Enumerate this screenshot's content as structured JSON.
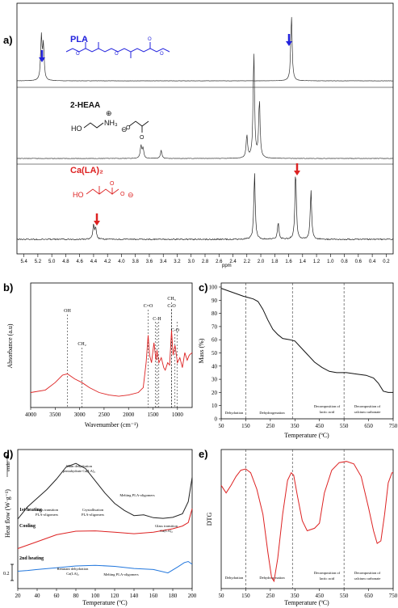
{
  "panels": {
    "a": "a)",
    "b": "b)",
    "c": "c)",
    "d": "d)",
    "e": "e)"
  },
  "nmr": {
    "xlabel": "ppm",
    "ticks": [
      5.4,
      5.2,
      5.0,
      4.8,
      4.6,
      4.4,
      4.2,
      4.0,
      3.8,
      3.6,
      3.4,
      3.2,
      3.0,
      2.8,
      2.6,
      2.4,
      2.2,
      2.0,
      1.8,
      1.6,
      1.4,
      1.2,
      1.0,
      0.8,
      0.6,
      0.4,
      0.2
    ],
    "tick_labels": [
      "5.4",
      "5.2",
      "5.0",
      "4.8",
      "4.6",
      "4.4",
      "4.2",
      "4.0",
      "3.8",
      "3.6",
      "3.4",
      "3.2",
      "3.0",
      "2.8",
      "2.6",
      "2.4",
      "2.2",
      "2.0",
      "1.8",
      "1.6",
      "1.4",
      "1.2",
      "1.0",
      "0.8",
      "0.6",
      "0.4",
      "0.2"
    ],
    "compounds": [
      {
        "name": "PLA",
        "color": "#2222dd"
      },
      {
        "name": "2-HEAA",
        "color": "#111111"
      },
      {
        "name": "Ca(LA)₂",
        "color": "#dd2222"
      }
    ],
    "struct_labels": {
      "ho1": "HO",
      "nh3": "NH₃",
      "ho2": "HO",
      "plus": "⊕",
      "minus": "⊖"
    }
  },
  "chart_data": [
    {
      "type": "line",
      "title": "",
      "xlabel": "ppm",
      "xlim": [
        5.5,
        0.1
      ],
      "series": [
        {
          "name": "PLA",
          "peaks": [
            {
              "x": 5.15,
              "height": 0.6
            },
            {
              "x": 1.56,
              "height": 0.9
            }
          ]
        },
        {
          "name": "2-HEAA",
          "peaks": [
            {
              "x": 3.72,
              "height": 0.12
            },
            {
              "x": 3.43,
              "height": 0.08
            },
            {
              "x": 2.2,
              "height": 0.22
            },
            {
              "x": 2.1,
              "height": 1.0
            },
            {
              "x": 2.02,
              "height": 0.55
            }
          ]
        },
        {
          "name": "Ca(LA)₂",
          "peaks": [
            {
              "x": 4.4,
              "height": 0.2
            },
            {
              "x": 2.09,
              "height": 0.95
            },
            {
              "x": 1.75,
              "height": 0.25
            },
            {
              "x": 1.5,
              "height": 1.0
            },
            {
              "x": 1.28,
              "height": 0.7
            }
          ]
        }
      ]
    },
    {
      "type": "line",
      "title": "",
      "xlabel": "Wavenumber (cm⁻¹)",
      "ylabel": "Absorbance (a.u)",
      "xlim": [
        4000,
        700
      ],
      "x_ticks": [
        4000,
        3500,
        3000,
        2500,
        2000,
        1500,
        1000
      ],
      "annotations": [
        {
          "label": "OH",
          "x": 3250
        },
        {
          "label": "CH₂",
          "x": 2950
        },
        {
          "label": "C=O",
          "x": 1600
        },
        {
          "label": "C-H",
          "x": 1420
        },
        {
          "label": "CH₃",
          "x": 1120
        },
        {
          "label": "C-O",
          "x": 1120
        },
        {
          "label": "C-O",
          "x": 1050
        }
      ],
      "series": [
        {
          "name": "",
          "points": [
            [
              4000,
              0.12
            ],
            [
              3700,
              0.14
            ],
            [
              3500,
              0.2
            ],
            [
              3350,
              0.26
            ],
            [
              3250,
              0.27
            ],
            [
              3100,
              0.23
            ],
            [
              2950,
              0.2
            ],
            [
              2800,
              0.16
            ],
            [
              2600,
              0.12
            ],
            [
              2400,
              0.1
            ],
            [
              2200,
              0.09
            ],
            [
              2000,
              0.1
            ],
            [
              1800,
              0.12
            ],
            [
              1700,
              0.16
            ],
            [
              1640,
              0.36
            ],
            [
              1600,
              0.58
            ],
            [
              1570,
              0.42
            ],
            [
              1530,
              0.36
            ],
            [
              1480,
              0.52
            ],
            [
              1440,
              0.38
            ],
            [
              1420,
              0.46
            ],
            [
              1380,
              0.36
            ],
            [
              1330,
              0.4
            ],
            [
              1280,
              0.32
            ],
            [
              1250,
              0.3
            ],
            [
              1200,
              0.36
            ],
            [
              1160,
              0.34
            ],
            [
              1120,
              0.62
            ],
            [
              1090,
              0.42
            ],
            [
              1050,
              0.5
            ],
            [
              1000,
              0.36
            ],
            [
              950,
              0.4
            ],
            [
              900,
              0.32
            ],
            [
              850,
              0.44
            ],
            [
              800,
              0.38
            ],
            [
              760,
              0.42
            ],
            [
              700,
              0.44
            ]
          ]
        }
      ]
    },
    {
      "type": "line",
      "title": "",
      "xlabel": "Temperature (ºC)",
      "ylabel": "Mass (%)",
      "xlim": [
        50,
        750
      ],
      "ylim": [
        0,
        100
      ],
      "x_ticks": [
        50,
        150,
        250,
        350,
        450,
        550,
        650,
        750
      ],
      "y_ticks": [
        0,
        10,
        20,
        30,
        40,
        50,
        60,
        70,
        80,
        90,
        100
      ],
      "regions": [
        "Dehydration",
        "Dehydrogenation",
        "Decomposition of lactic acid",
        "Decomposition of calcium carbonate"
      ],
      "boundaries": [
        150,
        340,
        550
      ],
      "series": [
        {
          "name": "",
          "points": [
            [
              50,
              99
            ],
            [
              80,
              97
            ],
            [
              110,
              95
            ],
            [
              140,
              93
            ],
            [
              160,
              92
            ],
            [
              180,
              91
            ],
            [
              200,
              89
            ],
            [
              220,
              83
            ],
            [
              240,
              75
            ],
            [
              260,
              68
            ],
            [
              280,
              64
            ],
            [
              300,
              61
            ],
            [
              330,
              60
            ],
            [
              350,
              59
            ],
            [
              370,
              55
            ],
            [
              400,
              49
            ],
            [
              430,
              43
            ],
            [
              460,
              39
            ],
            [
              490,
              36
            ],
            [
              520,
              35
            ],
            [
              560,
              35
            ],
            [
              600,
              34
            ],
            [
              640,
              33
            ],
            [
              670,
              31
            ],
            [
              690,
              27
            ],
            [
              710,
              21
            ],
            [
              730,
              20
            ],
            [
              750,
              20
            ]
          ]
        }
      ]
    },
    {
      "type": "line",
      "title": "",
      "xlabel": "Temperature (ºC)",
      "ylabel": "Heat flow (W·g⁻¹)",
      "xlim": [
        20,
        200
      ],
      "x_ticks": [
        20,
        40,
        60,
        80,
        100,
        120,
        140,
        160,
        180,
        200
      ],
      "endo_label": "endo",
      "scale_label": "0.2",
      "segment_labels": [
        "1st heating",
        "Cooling",
        "2nd heating"
      ],
      "annotations": [
        "Main dehydration pentahydrate Ca(LA)₂",
        "Melting PLA-oligomers",
        "Glass transition PLA-oligomers",
        "Crystallisation PLA-oligomers",
        "Glass transition Ca(LA)₂",
        "Remnant dehydration Ca(LA)₂",
        "Melting PLA-oligomers"
      ],
      "series": [
        {
          "name": "1st heating",
          "color": "#222222",
          "points": [
            [
              20,
              3.0
            ],
            [
              30,
              3.35
            ],
            [
              40,
              3.6
            ],
            [
              50,
              3.85
            ],
            [
              60,
              4.15
            ],
            [
              70,
              4.5
            ],
            [
              80,
              4.6
            ],
            [
              90,
              4.45
            ],
            [
              100,
              4.1
            ],
            [
              110,
              3.75
            ],
            [
              120,
              3.45
            ],
            [
              130,
              3.25
            ],
            [
              140,
              3.1
            ],
            [
              150,
              3.12
            ],
            [
              160,
              3.04
            ],
            [
              170,
              3.02
            ],
            [
              180,
              3.05
            ],
            [
              190,
              3.15
            ],
            [
              196,
              3.5
            ],
            [
              200,
              4.2
            ]
          ]
        },
        {
          "name": "Cooling",
          "color": "#dd2222",
          "points": [
            [
              20,
              2.15
            ],
            [
              40,
              2.35
            ],
            [
              60,
              2.55
            ],
            [
              80,
              2.65
            ],
            [
              100,
              2.66
            ],
            [
              120,
              2.62
            ],
            [
              140,
              2.58
            ],
            [
              160,
              2.62
            ],
            [
              180,
              2.72
            ],
            [
              190,
              2.8
            ],
            [
              196,
              2.9
            ],
            [
              200,
              3.3
            ]
          ]
        },
        {
          "name": "2nd heating",
          "color": "#2277dd",
          "points": [
            [
              20,
              1.5
            ],
            [
              30,
              1.52
            ],
            [
              40,
              1.55
            ],
            [
              60,
              1.6
            ],
            [
              80,
              1.65
            ],
            [
              100,
              1.67
            ],
            [
              120,
              1.64
            ],
            [
              140,
              1.58
            ],
            [
              160,
              1.55
            ],
            [
              175,
              1.45
            ],
            [
              185,
              1.62
            ],
            [
              192,
              1.75
            ],
            [
              196,
              1.78
            ],
            [
              200,
              1.7
            ]
          ]
        }
      ]
    },
    {
      "type": "line",
      "title": "",
      "xlabel": "Temperature (ºC)",
      "ylabel": "DTG",
      "xlim": [
        50,
        750
      ],
      "x_ticks": [
        50,
        150,
        250,
        350,
        450,
        550,
        650,
        750
      ],
      "regions": [
        "Dehydration",
        "Dehydrogenation",
        "Decomposition of lactic acid",
        "Decomposition of calcium carbonate"
      ],
      "boundaries": [
        150,
        340,
        550
      ],
      "series": [
        {
          "name": "",
          "color": "#dd2222",
          "points": [
            [
              50,
              0.78
            ],
            [
              70,
              0.72
            ],
            [
              90,
              0.78
            ],
            [
              110,
              0.85
            ],
            [
              130,
              0.9
            ],
            [
              150,
              0.91
            ],
            [
              170,
              0.88
            ],
            [
              195,
              0.75
            ],
            [
              220,
              0.55
            ],
            [
              240,
              0.25
            ],
            [
              255,
              0.05
            ],
            [
              265,
              0.02
            ],
            [
              280,
              0.2
            ],
            [
              300,
              0.55
            ],
            [
              320,
              0.82
            ],
            [
              335,
              0.88
            ],
            [
              345,
              0.86
            ],
            [
              360,
              0.7
            ],
            [
              380,
              0.5
            ],
            [
              400,
              0.42
            ],
            [
              430,
              0.44
            ],
            [
              450,
              0.48
            ],
            [
              470,
              0.72
            ],
            [
              500,
              0.9
            ],
            [
              530,
              0.96
            ],
            [
              560,
              0.97
            ],
            [
              590,
              0.95
            ],
            [
              620,
              0.85
            ],
            [
              650,
              0.6
            ],
            [
              670,
              0.42
            ],
            [
              685,
              0.32
            ],
            [
              700,
              0.34
            ],
            [
              715,
              0.55
            ],
            [
              730,
              0.8
            ],
            [
              745,
              0.88
            ],
            [
              750,
              0.88
            ]
          ]
        }
      ]
    }
  ]
}
